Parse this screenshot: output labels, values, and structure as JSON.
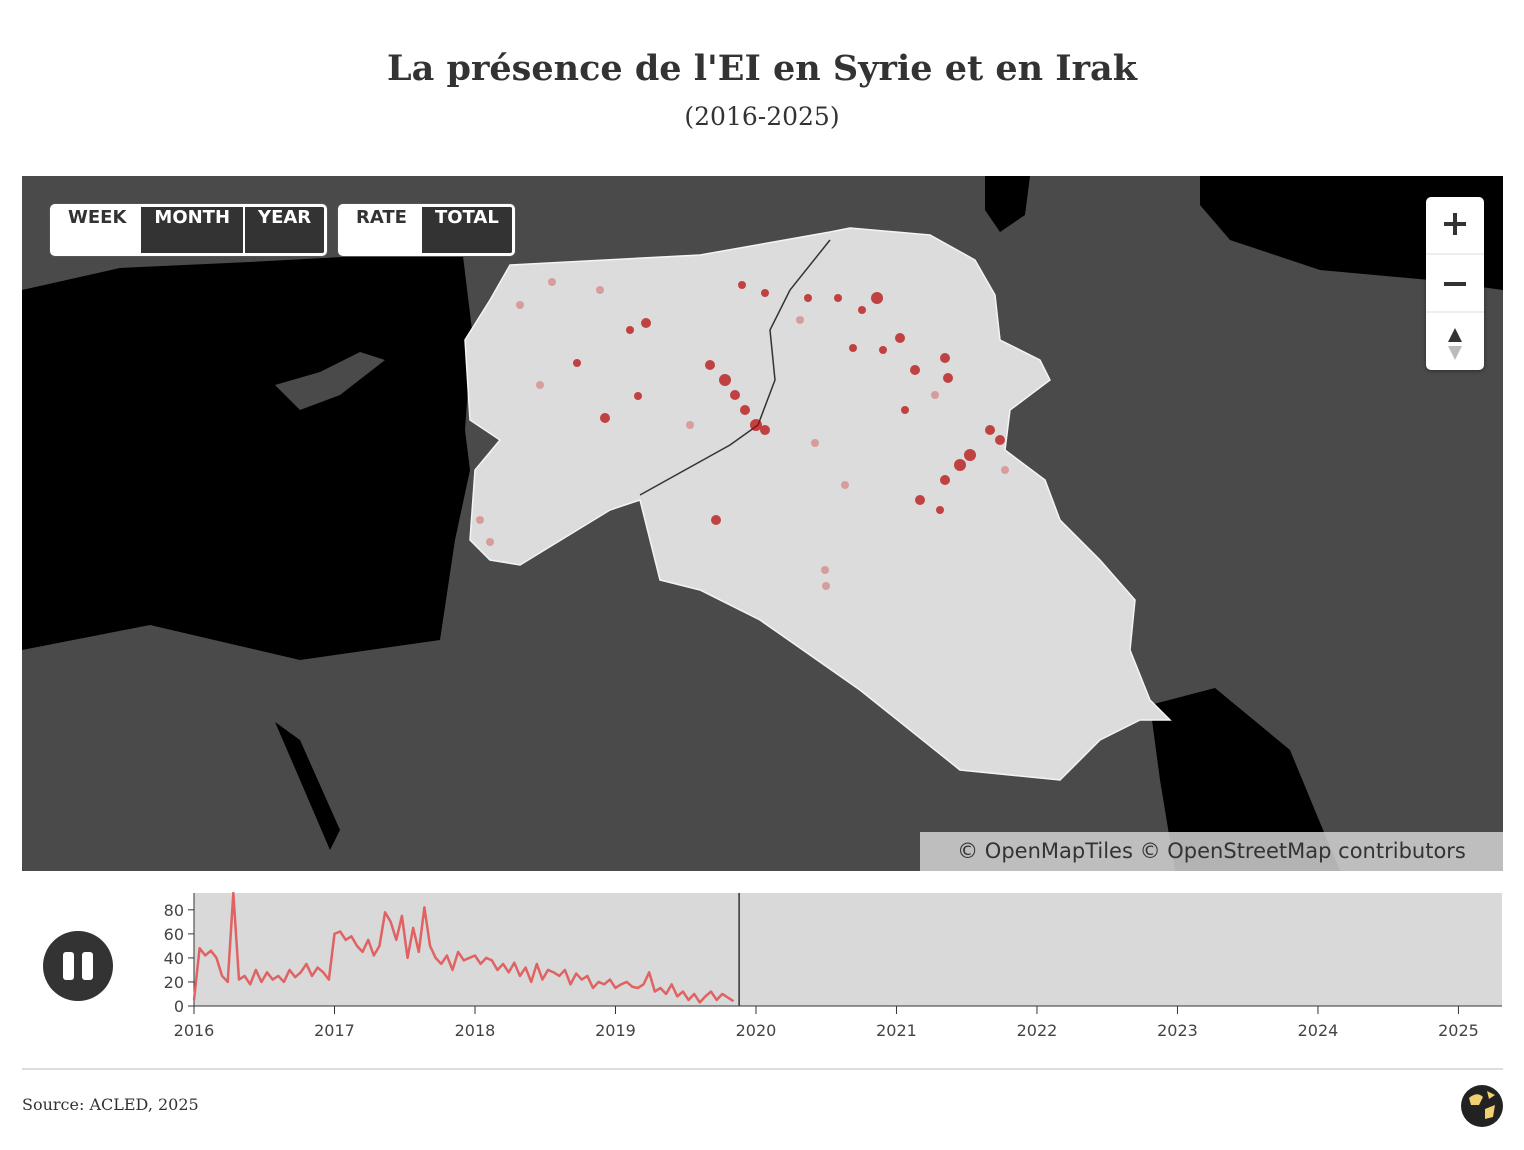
{
  "header": {
    "title": "La présence de l'EI en Syrie et en Irak",
    "subtitle": "(2016-2025)"
  },
  "controls": {
    "period": [
      "WEEK",
      "MONTH",
      "YEAR"
    ],
    "measure": [
      "RATE",
      "TOTAL"
    ]
  },
  "map": {
    "attribution": "© OpenMapTiles © OpenStreetMap contributors"
  },
  "chart_data": {
    "type": "line",
    "x": [
      2016.0,
      2016.04,
      2016.08,
      2016.12,
      2016.16,
      2016.2,
      2016.24,
      2016.28,
      2016.32,
      2016.36,
      2016.4,
      2016.44,
      2016.48,
      2016.52,
      2016.56,
      2016.6,
      2016.64,
      2016.68,
      2016.72,
      2016.76,
      2016.8,
      2016.84,
      2016.88,
      2016.92,
      2016.96,
      2017.0,
      2017.04,
      2017.08,
      2017.12,
      2017.16,
      2017.2,
      2017.24,
      2017.28,
      2017.32,
      2017.36,
      2017.4,
      2017.44,
      2017.48,
      2017.52,
      2017.56,
      2017.6,
      2017.64,
      2017.68,
      2017.72,
      2017.76,
      2017.8,
      2017.84,
      2017.88,
      2017.92,
      2017.96,
      2018.0,
      2018.04,
      2018.08,
      2018.12,
      2018.16,
      2018.2,
      2018.24,
      2018.28,
      2018.32,
      2018.36,
      2018.4,
      2018.44,
      2018.48,
      2018.52,
      2018.56,
      2018.6,
      2018.64,
      2018.68,
      2018.72,
      2018.76,
      2018.8,
      2018.84,
      2018.88,
      2018.92,
      2018.96,
      2019.0,
      2019.04,
      2019.08,
      2019.12,
      2019.16,
      2019.2,
      2019.24,
      2019.28,
      2019.32,
      2019.36,
      2019.4,
      2019.44,
      2019.48,
      2019.52,
      2019.56,
      2019.6,
      2019.64,
      2019.68,
      2019.72,
      2019.76,
      2019.8,
      2019.84
    ],
    "series": [
      {
        "color": "#e06262",
        "values": [
          5,
          48,
          42,
          46,
          40,
          25,
          20,
          94,
          22,
          25,
          18,
          30,
          20,
          28,
          22,
          25,
          20,
          30,
          24,
          28,
          35,
          25,
          32,
          28,
          22,
          60,
          62,
          55,
          58,
          50,
          45,
          55,
          42,
          50,
          78,
          70,
          55,
          75,
          40,
          65,
          45,
          82,
          50,
          40,
          35,
          42,
          30,
          45,
          38,
          40,
          42,
          35,
          40,
          38,
          30,
          35,
          28,
          36,
          25,
          32,
          20,
          35,
          22,
          30,
          28,
          25,
          30,
          18,
          27,
          22,
          25,
          15,
          20,
          18,
          22,
          15,
          18,
          20,
          16,
          15,
          18,
          28,
          12,
          15,
          10,
          18,
          8,
          12,
          5,
          10,
          3,
          8,
          12,
          5,
          10,
          7,
          4
        ]
      }
    ],
    "xlim": [
      2016,
      2025.31
    ],
    "xticks": [
      2016,
      2017,
      2018,
      2019,
      2020,
      2021,
      2022,
      2023,
      2024,
      2025
    ],
    "ylim": [
      0,
      94
    ],
    "yticks": [
      0,
      20,
      40,
      60,
      80
    ],
    "cursor": 2019.88
  },
  "source": "Source: ACLED, 2025"
}
